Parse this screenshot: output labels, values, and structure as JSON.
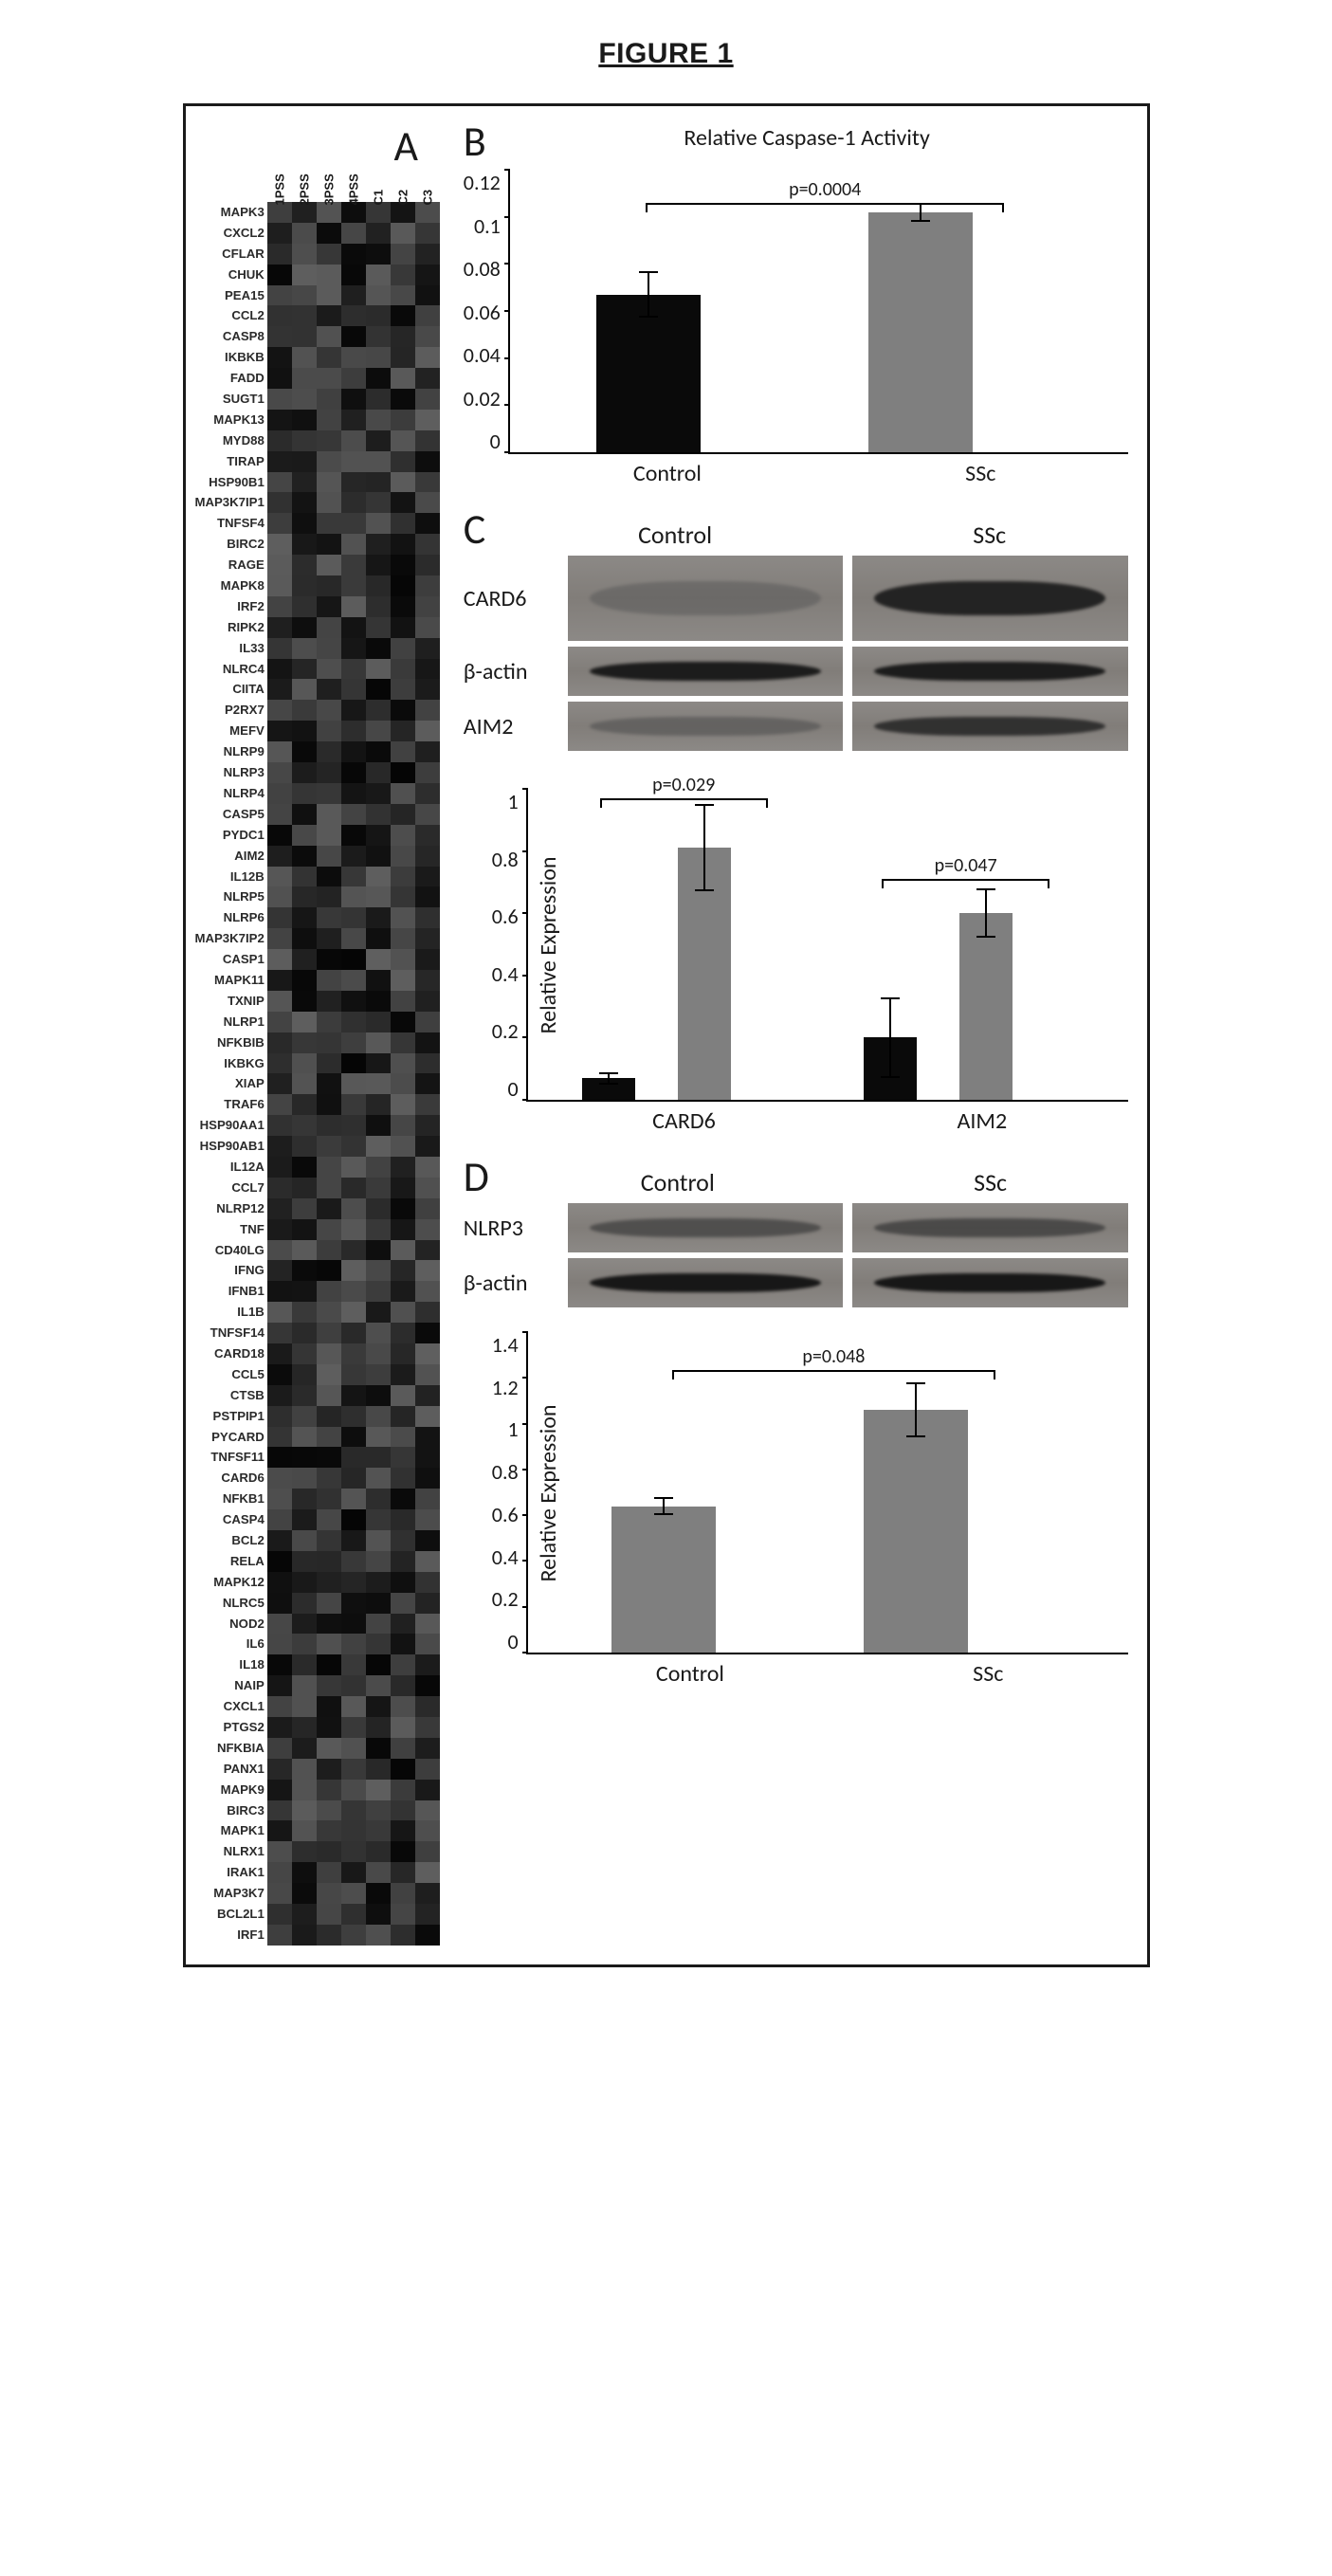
{
  "figure_title": "FIGURE 1",
  "panelA": {
    "letter": "A",
    "columns": [
      "1PSS",
      "2PSS",
      "3PSS",
      "4PSS",
      "C1",
      "C2",
      "C3"
    ],
    "genes": [
      "MAPK3",
      "CXCL2",
      "CFLAR",
      "CHUK",
      "PEA15",
      "CCL2",
      "CASP8",
      "IKBKB",
      "FADD",
      "SUGT1",
      "MAPK13",
      "MYD88",
      "TIRAP",
      "HSP90B1",
      "MAP3K7IP1",
      "TNFSF4",
      "BIRC2",
      "RAGE",
      "MAPK8",
      "IRF2",
      "RIPK2",
      "IL33",
      "NLRC4",
      "CIITA",
      "P2RX7",
      "MEFV",
      "NLRP9",
      "NLRP3",
      "NLRP4",
      "CASP5",
      "PYDC1",
      "AIM2",
      "IL12B",
      "NLRP5",
      "NLRP6",
      "MAP3K7IP2",
      "CASP1",
      "MAPK11",
      "TXNIP",
      "NLRP1",
      "NFKBIB",
      "IKBKG",
      "XIAP",
      "TRAF6",
      "HSP90AA1",
      "HSP90AB1",
      "IL12A",
      "CCL7",
      "NLRP12",
      "TNF",
      "CD40LG",
      "IFNG",
      "IFNB1",
      "IL1B",
      "TNFSF14",
      "CARD18",
      "CCL5",
      "CTSB",
      "PSTPIP1",
      "PYCARD",
      "TNFSF11",
      "CARD6",
      "NFKB1",
      "CASP4",
      "BCL2",
      "RELA",
      "MAPK12",
      "NLRC5",
      "NOD2",
      "IL6",
      "IL18",
      "NAIP",
      "CXCL1",
      "PTGS2",
      "NFKBIA",
      "PANX1",
      "MAPK9",
      "BIRC3",
      "MAPK1",
      "NLRX1",
      "IRAK1",
      "MAP3K7",
      "BCL2L1",
      "IRF1"
    ],
    "value_range": {
      "min": 5,
      "max": 95
    }
  },
  "panelB": {
    "letter": "B",
    "title": "Relative Caspase-1 Activity",
    "yticks": [
      "0",
      "0.02",
      "0.04",
      "0.06",
      "0.08",
      "0.1",
      "0.12"
    ],
    "ylim_max": 0.12,
    "categories": [
      "Control",
      "SSc"
    ],
    "bars": [
      {
        "value": 0.067,
        "err": 0.01,
        "color": "#0a0a0a"
      },
      {
        "value": 0.102,
        "err": 0.004,
        "color": "#7f7f7f"
      }
    ],
    "pvalue": "p=0.0004"
  },
  "panelC": {
    "letter": "C",
    "conditions": [
      "Control",
      "SSc"
    ],
    "blots": [
      {
        "label": "CARD6",
        "tall": true,
        "band_strength": [
          0.25,
          0.9
        ]
      },
      {
        "label": "β-actin",
        "band_strength": [
          0.95,
          0.95
        ]
      },
      {
        "label": "AIM2",
        "band_strength": [
          0.35,
          0.8
        ]
      }
    ],
    "chart": {
      "ylabel": "Relative Expression",
      "yticks": [
        "0",
        "0.2",
        "0.4",
        "0.6",
        "0.8",
        "1"
      ],
      "ylim_max": 1.0,
      "groups": [
        "CARD6",
        "AIM2"
      ],
      "series": [
        {
          "name": "Control",
          "color": "#0a0a0a",
          "values": [
            0.07,
            0.2
          ],
          "err": [
            0.02,
            0.13
          ]
        },
        {
          "name": "SSc",
          "color": "#7f7f7f",
          "values": [
            0.81,
            0.6
          ],
          "err": [
            0.14,
            0.08
          ]
        }
      ],
      "pvalues": [
        "p=0.029",
        "p=0.047"
      ]
    }
  },
  "panelD": {
    "letter": "D",
    "conditions": [
      "Control",
      "SSc"
    ],
    "blots": [
      {
        "label": "NLRP3",
        "band_strength": [
          0.55,
          0.6
        ]
      },
      {
        "label": "β-actin",
        "band_strength": [
          0.98,
          0.98
        ]
      }
    ],
    "chart": {
      "ylabel": "Relative Expression",
      "yticks": [
        "0",
        "0.2",
        "0.4",
        "0.6",
        "0.8",
        "1",
        "1.2",
        "1.4"
      ],
      "ylim_max": 1.4,
      "categories": [
        "Control",
        "SSc"
      ],
      "bars": [
        {
          "value": 0.64,
          "err": 0.04,
          "color": "#7f7f7f"
        },
        {
          "value": 1.06,
          "err": 0.12,
          "color": "#7f7f7f"
        }
      ],
      "pvalue": "p=0.048"
    }
  },
  "colors": {
    "figure_border": "#1a1a1a",
    "axis": "#000000",
    "text": "#1a1a1a"
  }
}
